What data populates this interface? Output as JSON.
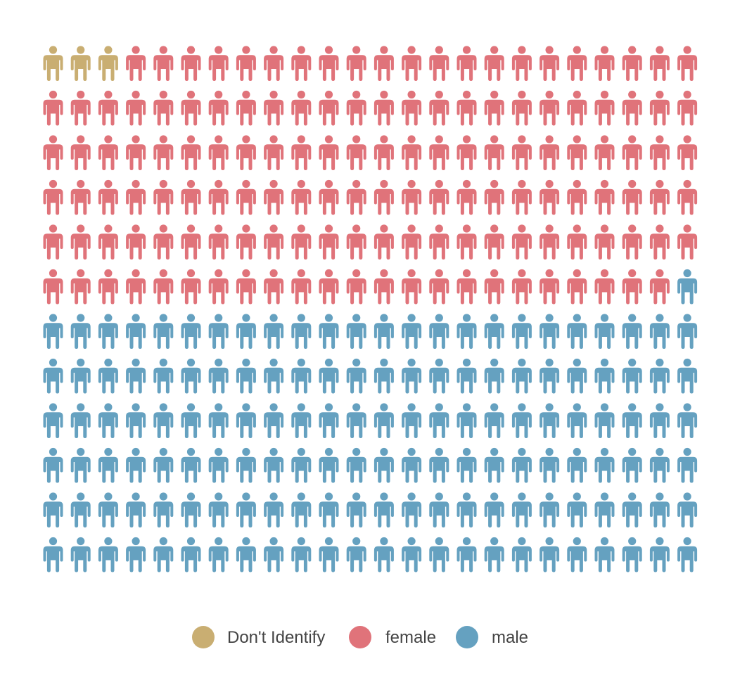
{
  "chart_data": {
    "type": "pictogram",
    "unit_icon": "person-icon",
    "grid": {
      "rows": 12,
      "columns": 24,
      "fill_order": "row-major"
    },
    "categories": [
      "Don't Identify",
      "female",
      "male"
    ],
    "values": [
      3,
      140,
      145
    ],
    "colors": [
      "#c9ae72",
      "#e0737a",
      "#65a1c0"
    ],
    "legend_position": "bottom-center",
    "legend": [
      {
        "label": "Don't Identify",
        "color": "#c9ae72"
      },
      {
        "label": "female",
        "color": "#e0737a"
      },
      {
        "label": "male",
        "color": "#65a1c0"
      }
    ]
  }
}
